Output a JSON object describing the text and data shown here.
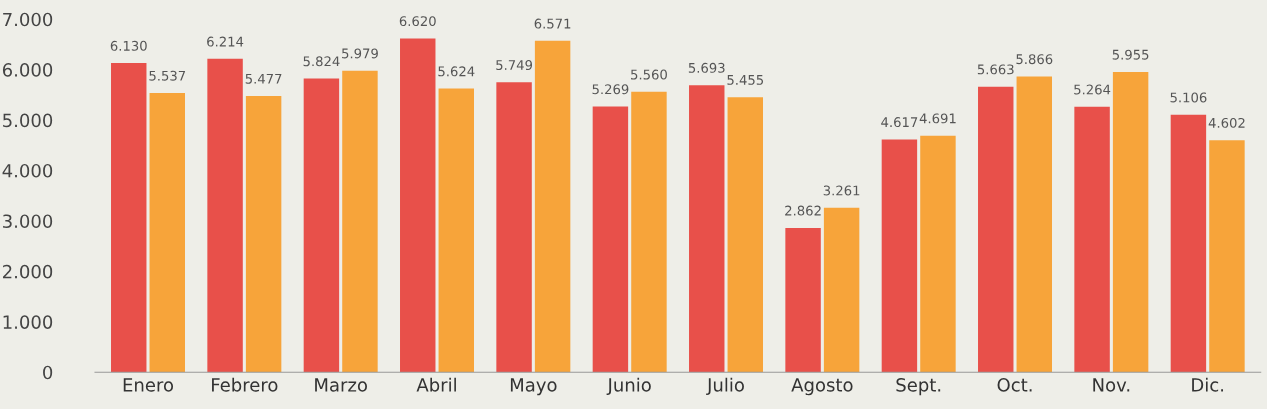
{
  "chart_data": {
    "type": "bar",
    "categories": [
      "Enero",
      "Febrero",
      "Marzo",
      "Abril",
      "Mayo",
      "Junio",
      "Julio",
      "Agosto",
      "Sept.",
      "Oct.",
      "Nov.",
      "Dic."
    ],
    "series": [
      {
        "color": "#e8504a",
        "values": [
          6130,
          6214,
          5824,
          6620,
          5749,
          5269,
          5693,
          2862,
          4617,
          5663,
          5264,
          5106
        ],
        "value_labels": [
          "6.130",
          "6.214",
          "5.824",
          "6.620",
          "5.749",
          "5.269",
          "5.693",
          "2.862",
          "4.617",
          "5.663",
          "5.264",
          "5.106"
        ]
      },
      {
        "color": "#f7a43a",
        "values": [
          5537,
          5477,
          5979,
          5624,
          6571,
          5560,
          5455,
          3261,
          4691,
          5866,
          5955,
          4602
        ],
        "value_labels": [
          "5.537",
          "5.477",
          "5.979",
          "5.624",
          "6.571",
          "5.560",
          "5.455",
          "3.261",
          "4.691",
          "5.866",
          "5.955",
          "4.602"
        ]
      }
    ],
    "ylim": [
      0,
      7000
    ],
    "yticks": [
      {
        "value": 0,
        "label": "0"
      },
      {
        "value": 1000,
        "label": "1.000"
      },
      {
        "value": 2000,
        "label": "2.000"
      },
      {
        "value": 3000,
        "label": "3.000"
      },
      {
        "value": 4000,
        "label": "4.000"
      },
      {
        "value": 5000,
        "label": "5.000"
      },
      {
        "value": 6000,
        "label": "6.000"
      },
      {
        "value": 7000,
        "label": "7.000"
      }
    ],
    "grid": false
  }
}
